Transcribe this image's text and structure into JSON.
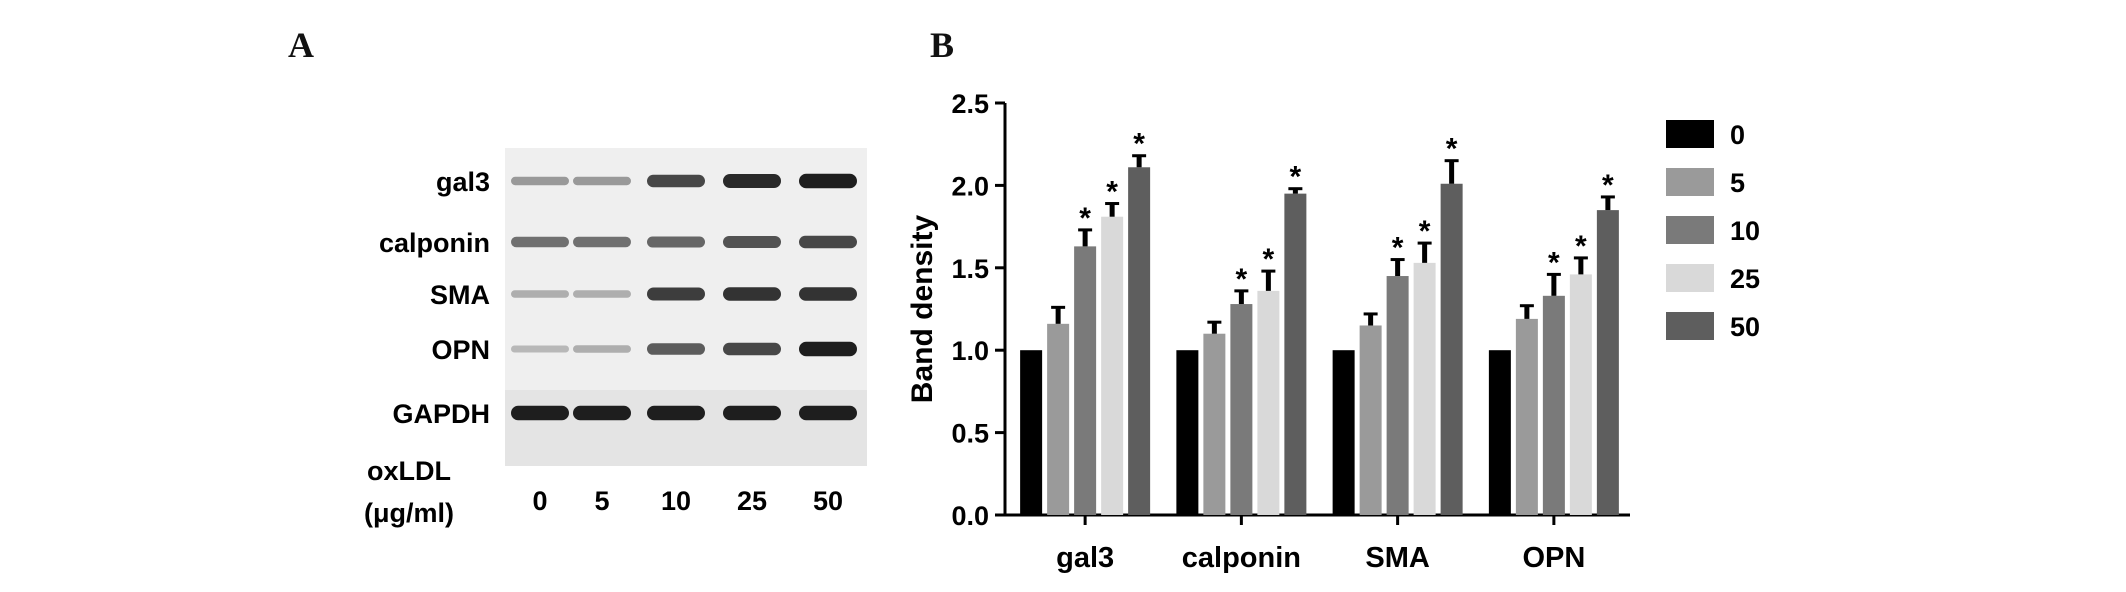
{
  "panel_a": {
    "letter": "A",
    "rows": [
      {
        "label": "gal3",
        "intensities": [
          0.35,
          0.35,
          0.75,
          0.9,
          0.95
        ]
      },
      {
        "label": "calponin",
        "intensities": [
          0.55,
          0.55,
          0.6,
          0.7,
          0.75
        ]
      },
      {
        "label": "SMA",
        "intensities": [
          0.25,
          0.25,
          0.8,
          0.85,
          0.85
        ]
      },
      {
        "label": "OPN",
        "intensities": [
          0.2,
          0.25,
          0.65,
          0.75,
          0.95
        ]
      },
      {
        "label": "GAPDH",
        "intensities": [
          0.95,
          0.95,
          0.95,
          0.95,
          0.95
        ]
      }
    ],
    "treatment_label_line1": "oxLDL",
    "treatment_label_line2": "(μg/ml)",
    "lanes": [
      "0",
      "5",
      "10",
      "25",
      "50"
    ]
  },
  "chart_data": {
    "type": "bar",
    "panel_letter": "B",
    "categories": [
      "gal3",
      "calponin",
      "SMA",
      "OPN"
    ],
    "ylabel": "Band density",
    "xlabel": "",
    "ylim": [
      0,
      2.5
    ],
    "yticks": [
      "0.0",
      "0.5",
      "1.0",
      "1.5",
      "2.0",
      "2.5"
    ],
    "legend_position": "right",
    "significance_marker": "*",
    "series": [
      {
        "name": "0",
        "color": "#000000",
        "values": [
          1.0,
          1.0,
          1.0,
          1.0
        ],
        "errors": [
          0,
          0,
          0,
          0
        ],
        "significant": [
          false,
          false,
          false,
          false
        ]
      },
      {
        "name": "5",
        "color": "#9a9a9a",
        "values": [
          1.16,
          1.1,
          1.15,
          1.19
        ],
        "errors": [
          0.1,
          0.07,
          0.07,
          0.08
        ],
        "significant": [
          false,
          false,
          false,
          false
        ]
      },
      {
        "name": "10",
        "color": "#7a7a7a",
        "values": [
          1.63,
          1.28,
          1.45,
          1.33
        ],
        "errors": [
          0.1,
          0.08,
          0.1,
          0.13
        ],
        "significant": [
          true,
          true,
          true,
          true
        ]
      },
      {
        "name": "25",
        "color": "#d9d9d9",
        "values": [
          1.81,
          1.36,
          1.53,
          1.46
        ],
        "errors": [
          0.08,
          0.12,
          0.12,
          0.1
        ],
        "significant": [
          true,
          true,
          true,
          true
        ]
      },
      {
        "name": "50",
        "color": "#5e5e5e",
        "values": [
          2.11,
          1.95,
          2.01,
          1.85
        ],
        "errors": [
          0.07,
          0.03,
          0.14,
          0.08
        ],
        "significant": [
          true,
          true,
          true,
          true
        ]
      }
    ]
  }
}
